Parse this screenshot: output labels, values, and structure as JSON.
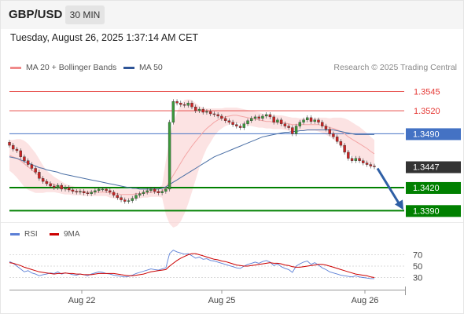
{
  "header": {
    "symbol": "GBP/USD",
    "timeframe": "30 MIN",
    "datetime": "Tuesday, August 26, 2025 1:37:14 AM CET"
  },
  "legend": {
    "ma20_label": "MA 20 + Bollinger Bands",
    "ma50_label": "MA 50",
    "credit": "Research © 2025 Trading Central"
  },
  "rsi_legend": {
    "rsi_label": "RSI",
    "ma_label": "9MA"
  },
  "colors": {
    "resistance": "#e53935",
    "pivot": "#4472c4",
    "support": "#008000",
    "current": "#333333",
    "ma20": "#f4a6a6",
    "ma50": "#4a6fa5",
    "bollinger": "#fbd4d4",
    "rsi": "#5b7fd6",
    "rsi_ma": "#cc0000",
    "arrow": "#2f5fa5"
  },
  "chart_data": [
    {
      "type": "candlestick",
      "title": "GBP/USD 30 MIN",
      "x_tick_labels": [
        "Aug 22",
        "Aug 25",
        "Aug 26"
      ],
      "ylim": [
        1.3375,
        1.3565
      ],
      "levels": [
        {
          "label": "1.3545",
          "value": 1.3545,
          "kind": "resistance"
        },
        {
          "label": "1.3520",
          "value": 1.352,
          "kind": "resistance"
        },
        {
          "label": "1.3490",
          "value": 1.349,
          "kind": "pivot"
        },
        {
          "label": "1.3447",
          "value": 1.3447,
          "kind": "current"
        },
        {
          "label": "1.3420",
          "value": 1.342,
          "kind": "support"
        },
        {
          "label": "1.3390",
          "value": 1.339,
          "kind": "support"
        }
      ],
      "close": [
        1.3475,
        1.347,
        1.3468,
        1.346,
        1.3455,
        1.345,
        1.3445,
        1.344,
        1.3432,
        1.3428,
        1.3425,
        1.3422,
        1.342,
        1.3423,
        1.3418,
        1.342,
        1.3417,
        1.3415,
        1.3414,
        1.3415,
        1.3413,
        1.3412,
        1.3414,
        1.3416,
        1.3418,
        1.3418,
        1.3416,
        1.3414,
        1.341,
        1.3407,
        1.3404,
        1.3402,
        1.3403,
        1.3406,
        1.341,
        1.3412,
        1.3414,
        1.3416,
        1.3418,
        1.3415,
        1.3413,
        1.3415,
        1.3418,
        1.3505,
        1.3532,
        1.353,
        1.3528,
        1.3527,
        1.353,
        1.3525,
        1.352,
        1.3522,
        1.3518,
        1.3519,
        1.3516,
        1.3515,
        1.3513,
        1.351,
        1.3507,
        1.3505,
        1.3502,
        1.35,
        1.3498,
        1.3503,
        1.3507,
        1.351,
        1.3512,
        1.351,
        1.3513,
        1.3515,
        1.3512,
        1.3505,
        1.3508,
        1.3503,
        1.35,
        1.3498,
        1.349,
        1.35,
        1.3505,
        1.3508,
        1.3511,
        1.3506,
        1.3508,
        1.3505,
        1.35,
        1.3496,
        1.349,
        1.3486,
        1.348,
        1.3475,
        1.3466,
        1.3458,
        1.3455,
        1.3458,
        1.3455,
        1.3452,
        1.345,
        1.3448,
        1.3447
      ],
      "ma20": [
        1.3462,
        1.346,
        1.3458,
        1.3455,
        1.3451,
        1.3447,
        1.3443,
        1.3439,
        1.3435,
        1.3431,
        1.3428,
        1.3426,
        1.3424,
        1.3422,
        1.342,
        1.3418,
        1.3417,
        1.3416,
        1.3415,
        1.3415,
        1.3414,
        1.3414,
        1.3414,
        1.3414,
        1.3414,
        1.3414,
        1.3414,
        1.3413,
        1.3412,
        1.3412,
        1.3411,
        1.3411,
        1.3411,
        1.3411,
        1.3412,
        1.3412,
        1.3413,
        1.3413,
        1.3414,
        1.3414,
        1.3414,
        1.3415,
        1.342,
        1.3428,
        1.3436,
        1.3444,
        1.3452,
        1.346,
        1.3467,
        1.3474,
        1.348,
        1.3486,
        1.3492,
        1.3497,
        1.3501,
        1.3505,
        1.3508,
        1.351,
        1.3512,
        1.3513,
        1.3514,
        1.3514,
        1.3513,
        1.3512,
        1.3511,
        1.351,
        1.3509,
        1.3508,
        1.3507,
        1.3506,
        1.3506,
        1.3505,
        1.3505,
        1.3505,
        1.3504,
        1.3503,
        1.3502,
        1.3502,
        1.3502,
        1.3502,
        1.3502,
        1.3502,
        1.3502,
        1.3502,
        1.3501,
        1.35,
        1.3498,
        1.3497,
        1.3495,
        1.3493,
        1.349,
        1.3486,
        1.3483,
        1.348,
        1.3477,
        1.3474,
        1.3471,
        1.3467,
        1.3464
      ],
      "ma50": [
        1.346,
        1.3459,
        1.3458,
        1.3456,
        1.3454,
        1.3452,
        1.345,
        1.3448,
        1.3446,
        1.3445,
        1.3443,
        1.3442,
        1.3441,
        1.344,
        1.3438,
        1.3437,
        1.3436,
        1.3435,
        1.3434,
        1.3433,
        1.3432,
        1.3431,
        1.343,
        1.3429,
        1.3428,
        1.3427,
        1.3426,
        1.3425,
        1.3424,
        1.3423,
        1.3422,
        1.3421,
        1.342,
        1.3419,
        1.3419,
        1.3418,
        1.3418,
        1.3418,
        1.3418,
        1.3418,
        1.3418,
        1.3419,
        1.3421,
        1.3424,
        1.3427,
        1.343,
        1.3433,
        1.3436,
        1.3439,
        1.3442,
        1.3445,
        1.3448,
        1.3451,
        1.3454,
        1.3457,
        1.346,
        1.3462,
        1.3464,
        1.3466,
        1.3468,
        1.347,
        1.3472,
        1.3474,
        1.3476,
        1.3478,
        1.348,
        1.3482,
        1.3484,
        1.3486,
        1.3487,
        1.3488,
        1.3489,
        1.349,
        1.3491,
        1.3492,
        1.3492,
        1.3493,
        1.3493,
        1.3494,
        1.3494,
        1.3495,
        1.3495,
        1.3495,
        1.3495,
        1.3495,
        1.3495,
        1.3495,
        1.3495,
        1.3494,
        1.3493,
        1.3492,
        1.3491,
        1.349,
        1.3489,
        1.3489,
        1.3489,
        1.3489,
        1.3489,
        1.3489
      ],
      "bb_width": [
        0.002,
        0.0022,
        0.0025,
        0.0028,
        0.003,
        0.003,
        0.0028,
        0.0026,
        0.0022,
        0.0018,
        0.0014,
        0.0012,
        0.001,
        0.0009,
        0.0008,
        0.0007,
        0.0006,
        0.0006,
        0.0005,
        0.0005,
        0.0005,
        0.0005,
        0.0005,
        0.0005,
        0.0005,
        0.0005,
        0.0005,
        0.0006,
        0.0006,
        0.0007,
        0.0007,
        0.0007,
        0.0007,
        0.0007,
        0.0007,
        0.0006,
        0.0006,
        0.0006,
        0.0006,
        0.0006,
        0.0006,
        0.0008,
        0.0035,
        0.0055,
        0.0068,
        0.0074,
        0.0076,
        0.0074,
        0.0068,
        0.006,
        0.005,
        0.004,
        0.0032,
        0.0026,
        0.0022,
        0.0018,
        0.0015,
        0.0013,
        0.0012,
        0.0011,
        0.001,
        0.001,
        0.001,
        0.001,
        0.001,
        0.001,
        0.001,
        0.001,
        0.0009,
        0.0009,
        0.0009,
        0.0009,
        0.0009,
        0.0009,
        0.0009,
        0.0009,
        0.0009,
        0.0009,
        0.0008,
        0.0008,
        0.0008,
        0.0008,
        0.0008,
        0.0009,
        0.001,
        0.0011,
        0.0012,
        0.0014,
        0.0016,
        0.0018,
        0.002,
        0.0022,
        0.0022,
        0.0022,
        0.0022,
        0.0021,
        0.002,
        0.0019,
        0.0018
      ]
    },
    {
      "type": "line",
      "title": "RSI",
      "y_tick_labels": [
        "70",
        "50",
        "30"
      ],
      "ylim": [
        10,
        90
      ],
      "rsi": [
        58,
        55,
        50,
        45,
        40,
        42,
        38,
        36,
        33,
        35,
        36,
        38,
        37,
        40,
        36,
        38,
        37,
        35,
        34,
        36,
        35,
        33,
        36,
        38,
        40,
        39,
        37,
        36,
        34,
        33,
        32,
        31,
        32,
        34,
        37,
        39,
        41,
        43,
        45,
        44,
        43,
        45,
        47,
        72,
        78,
        75,
        73,
        71,
        72,
        68,
        64,
        66,
        62,
        63,
        60,
        59,
        57,
        55,
        53,
        51,
        49,
        47,
        46,
        50,
        53,
        55,
        57,
        55,
        58,
        60,
        57,
        51,
        54,
        49,
        46,
        44,
        39,
        50,
        54,
        57,
        59,
        53,
        56,
        52,
        47,
        44,
        40,
        38,
        36,
        34,
        33,
        32,
        31,
        33,
        31,
        30,
        29,
        28,
        28
      ],
      "rsi_ma": [
        56,
        55,
        53,
        51,
        48,
        46,
        44,
        42,
        40,
        39,
        38,
        37,
        36,
        37,
        37,
        38,
        37,
        37,
        36,
        36,
        35,
        35,
        35,
        36,
        37,
        37,
        37,
        37,
        37,
        36,
        35,
        34,
        33,
        33,
        34,
        35,
        36,
        38,
        40,
        41,
        42,
        43,
        44,
        50,
        55,
        60,
        64,
        67,
        70,
        72,
        72,
        70,
        68,
        66,
        64,
        62,
        61,
        59,
        58,
        56,
        54,
        52,
        51,
        50,
        50,
        51,
        52,
        53,
        54,
        55,
        56,
        55,
        55,
        54,
        52,
        51,
        49,
        48,
        48,
        49,
        50,
        51,
        52,
        53,
        53,
        52,
        50,
        48,
        46,
        44,
        42,
        40,
        38,
        36,
        35,
        34,
        33,
        31,
        30
      ]
    }
  ]
}
